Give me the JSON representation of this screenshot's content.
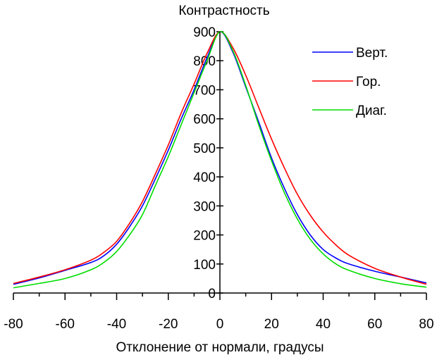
{
  "chart_data": {
    "type": "line",
    "title": "",
    "ylabel": "Контрастность",
    "xlabel": "Отклонение от нормали, градусы",
    "xlim": [
      -80,
      80
    ],
    "ylim": [
      0,
      900
    ],
    "x_ticks": [
      -80,
      -60,
      -40,
      -20,
      0,
      20,
      40,
      60,
      80
    ],
    "y_ticks": [
      0,
      100,
      200,
      300,
      400,
      500,
      600,
      700,
      800,
      900
    ],
    "grid": false,
    "legend": "top-right",
    "series": [
      {
        "name": "Верт.",
        "color": "#0000ff",
        "points": [
          [
            -80,
            30
          ],
          [
            -70,
            52
          ],
          [
            -60,
            78
          ],
          [
            -50,
            105
          ],
          [
            -45,
            128
          ],
          [
            -40,
            168
          ],
          [
            -35,
            228
          ],
          [
            -30,
            300
          ],
          [
            -25,
            393
          ],
          [
            -20,
            492
          ],
          [
            -15,
            600
          ],
          [
            -10,
            700
          ],
          [
            -5,
            810
          ],
          [
            0,
            900
          ],
          [
            5,
            830
          ],
          [
            10,
            710
          ],
          [
            15,
            590
          ],
          [
            20,
            465
          ],
          [
            25,
            360
          ],
          [
            30,
            270
          ],
          [
            35,
            200
          ],
          [
            40,
            150
          ],
          [
            45,
            120
          ],
          [
            50,
            100
          ],
          [
            60,
            75
          ],
          [
            70,
            55
          ],
          [
            80,
            35
          ]
        ]
      },
      {
        "name": "Гор.",
        "color": "#ff0000",
        "points": [
          [
            -80,
            33
          ],
          [
            -70,
            55
          ],
          [
            -60,
            80
          ],
          [
            -50,
            113
          ],
          [
            -45,
            140
          ],
          [
            -40,
            178
          ],
          [
            -35,
            240
          ],
          [
            -30,
            315
          ],
          [
            -25,
            410
          ],
          [
            -20,
            510
          ],
          [
            -15,
            620
          ],
          [
            -10,
            720
          ],
          [
            -5,
            825
          ],
          [
            0,
            900
          ],
          [
            5,
            845
          ],
          [
            10,
            750
          ],
          [
            15,
            640
          ],
          [
            20,
            530
          ],
          [
            25,
            430
          ],
          [
            30,
            340
          ],
          [
            35,
            268
          ],
          [
            40,
            210
          ],
          [
            45,
            165
          ],
          [
            50,
            130
          ],
          [
            60,
            85
          ],
          [
            70,
            55
          ],
          [
            80,
            30
          ]
        ]
      },
      {
        "name": "Диаг.",
        "color": "#00dd00",
        "points": [
          [
            -80,
            18
          ],
          [
            -70,
            33
          ],
          [
            -60,
            50
          ],
          [
            -50,
            80
          ],
          [
            -45,
            105
          ],
          [
            -40,
            143
          ],
          [
            -35,
            200
          ],
          [
            -30,
            270
          ],
          [
            -25,
            370
          ],
          [
            -20,
            470
          ],
          [
            -15,
            580
          ],
          [
            -10,
            690
          ],
          [
            -5,
            800
          ],
          [
            0,
            900
          ],
          [
            5,
            835
          ],
          [
            10,
            715
          ],
          [
            15,
            580
          ],
          [
            20,
            455
          ],
          [
            25,
            345
          ],
          [
            30,
            255
          ],
          [
            35,
            185
          ],
          [
            40,
            135
          ],
          [
            45,
            100
          ],
          [
            50,
            78
          ],
          [
            60,
            50
          ],
          [
            70,
            32
          ],
          [
            80,
            20
          ]
        ]
      }
    ]
  }
}
